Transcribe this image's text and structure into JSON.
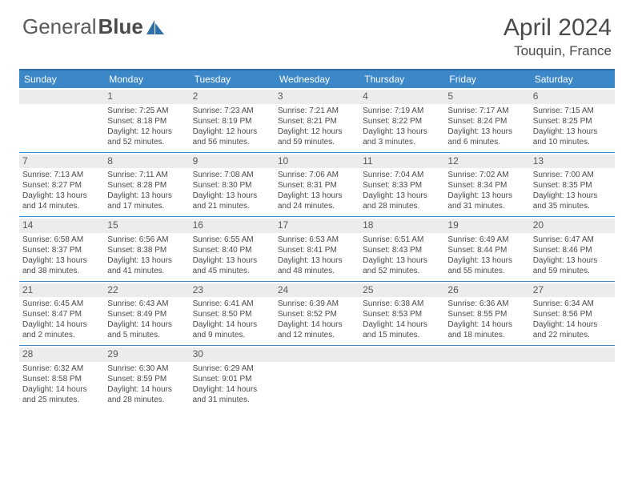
{
  "brand": {
    "part1": "General",
    "part2": "Blue"
  },
  "title": "April 2024",
  "location": "Touquin, France",
  "colors": {
    "header_bg": "#3b87c8",
    "header_border": "#2f6fa8",
    "daynum_bg": "#ececec",
    "text": "#4a4a4a",
    "logo_accent": "#2f6fa8"
  },
  "weekdays": [
    "Sunday",
    "Monday",
    "Tuesday",
    "Wednesday",
    "Thursday",
    "Friday",
    "Saturday"
  ],
  "weeks": [
    [
      {
        "n": "",
        "sr": "",
        "ss": "",
        "dl": ""
      },
      {
        "n": "1",
        "sr": "Sunrise: 7:25 AM",
        "ss": "Sunset: 8:18 PM",
        "dl": "Daylight: 12 hours and 52 minutes."
      },
      {
        "n": "2",
        "sr": "Sunrise: 7:23 AM",
        "ss": "Sunset: 8:19 PM",
        "dl": "Daylight: 12 hours and 56 minutes."
      },
      {
        "n": "3",
        "sr": "Sunrise: 7:21 AM",
        "ss": "Sunset: 8:21 PM",
        "dl": "Daylight: 12 hours and 59 minutes."
      },
      {
        "n": "4",
        "sr": "Sunrise: 7:19 AM",
        "ss": "Sunset: 8:22 PM",
        "dl": "Daylight: 13 hours and 3 minutes."
      },
      {
        "n": "5",
        "sr": "Sunrise: 7:17 AM",
        "ss": "Sunset: 8:24 PM",
        "dl": "Daylight: 13 hours and 6 minutes."
      },
      {
        "n": "6",
        "sr": "Sunrise: 7:15 AM",
        "ss": "Sunset: 8:25 PM",
        "dl": "Daylight: 13 hours and 10 minutes."
      }
    ],
    [
      {
        "n": "7",
        "sr": "Sunrise: 7:13 AM",
        "ss": "Sunset: 8:27 PM",
        "dl": "Daylight: 13 hours and 14 minutes."
      },
      {
        "n": "8",
        "sr": "Sunrise: 7:11 AM",
        "ss": "Sunset: 8:28 PM",
        "dl": "Daylight: 13 hours and 17 minutes."
      },
      {
        "n": "9",
        "sr": "Sunrise: 7:08 AM",
        "ss": "Sunset: 8:30 PM",
        "dl": "Daylight: 13 hours and 21 minutes."
      },
      {
        "n": "10",
        "sr": "Sunrise: 7:06 AM",
        "ss": "Sunset: 8:31 PM",
        "dl": "Daylight: 13 hours and 24 minutes."
      },
      {
        "n": "11",
        "sr": "Sunrise: 7:04 AM",
        "ss": "Sunset: 8:33 PM",
        "dl": "Daylight: 13 hours and 28 minutes."
      },
      {
        "n": "12",
        "sr": "Sunrise: 7:02 AM",
        "ss": "Sunset: 8:34 PM",
        "dl": "Daylight: 13 hours and 31 minutes."
      },
      {
        "n": "13",
        "sr": "Sunrise: 7:00 AM",
        "ss": "Sunset: 8:35 PM",
        "dl": "Daylight: 13 hours and 35 minutes."
      }
    ],
    [
      {
        "n": "14",
        "sr": "Sunrise: 6:58 AM",
        "ss": "Sunset: 8:37 PM",
        "dl": "Daylight: 13 hours and 38 minutes."
      },
      {
        "n": "15",
        "sr": "Sunrise: 6:56 AM",
        "ss": "Sunset: 8:38 PM",
        "dl": "Daylight: 13 hours and 41 minutes."
      },
      {
        "n": "16",
        "sr": "Sunrise: 6:55 AM",
        "ss": "Sunset: 8:40 PM",
        "dl": "Daylight: 13 hours and 45 minutes."
      },
      {
        "n": "17",
        "sr": "Sunrise: 6:53 AM",
        "ss": "Sunset: 8:41 PM",
        "dl": "Daylight: 13 hours and 48 minutes."
      },
      {
        "n": "18",
        "sr": "Sunrise: 6:51 AM",
        "ss": "Sunset: 8:43 PM",
        "dl": "Daylight: 13 hours and 52 minutes."
      },
      {
        "n": "19",
        "sr": "Sunrise: 6:49 AM",
        "ss": "Sunset: 8:44 PM",
        "dl": "Daylight: 13 hours and 55 minutes."
      },
      {
        "n": "20",
        "sr": "Sunrise: 6:47 AM",
        "ss": "Sunset: 8:46 PM",
        "dl": "Daylight: 13 hours and 59 minutes."
      }
    ],
    [
      {
        "n": "21",
        "sr": "Sunrise: 6:45 AM",
        "ss": "Sunset: 8:47 PM",
        "dl": "Daylight: 14 hours and 2 minutes."
      },
      {
        "n": "22",
        "sr": "Sunrise: 6:43 AM",
        "ss": "Sunset: 8:49 PM",
        "dl": "Daylight: 14 hours and 5 minutes."
      },
      {
        "n": "23",
        "sr": "Sunrise: 6:41 AM",
        "ss": "Sunset: 8:50 PM",
        "dl": "Daylight: 14 hours and 9 minutes."
      },
      {
        "n": "24",
        "sr": "Sunrise: 6:39 AM",
        "ss": "Sunset: 8:52 PM",
        "dl": "Daylight: 14 hours and 12 minutes."
      },
      {
        "n": "25",
        "sr": "Sunrise: 6:38 AM",
        "ss": "Sunset: 8:53 PM",
        "dl": "Daylight: 14 hours and 15 minutes."
      },
      {
        "n": "26",
        "sr": "Sunrise: 6:36 AM",
        "ss": "Sunset: 8:55 PM",
        "dl": "Daylight: 14 hours and 18 minutes."
      },
      {
        "n": "27",
        "sr": "Sunrise: 6:34 AM",
        "ss": "Sunset: 8:56 PM",
        "dl": "Daylight: 14 hours and 22 minutes."
      }
    ],
    [
      {
        "n": "28",
        "sr": "Sunrise: 6:32 AM",
        "ss": "Sunset: 8:58 PM",
        "dl": "Daylight: 14 hours and 25 minutes."
      },
      {
        "n": "29",
        "sr": "Sunrise: 6:30 AM",
        "ss": "Sunset: 8:59 PM",
        "dl": "Daylight: 14 hours and 28 minutes."
      },
      {
        "n": "30",
        "sr": "Sunrise: 6:29 AM",
        "ss": "Sunset: 9:01 PM",
        "dl": "Daylight: 14 hours and 31 minutes."
      },
      {
        "n": "",
        "sr": "",
        "ss": "",
        "dl": ""
      },
      {
        "n": "",
        "sr": "",
        "ss": "",
        "dl": ""
      },
      {
        "n": "",
        "sr": "",
        "ss": "",
        "dl": ""
      },
      {
        "n": "",
        "sr": "",
        "ss": "",
        "dl": ""
      }
    ]
  ]
}
